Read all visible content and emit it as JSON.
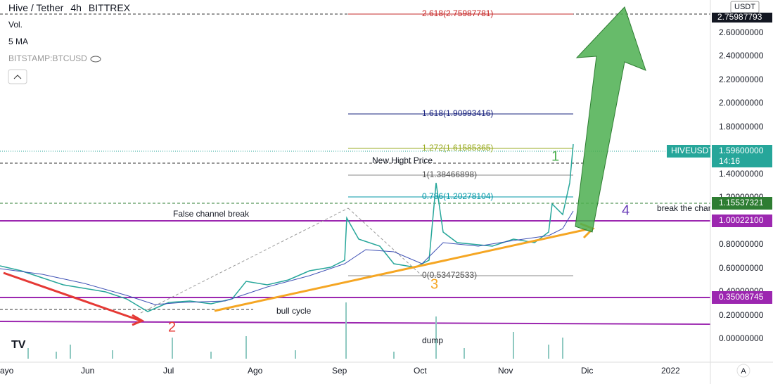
{
  "header": {
    "title": "Hive / Tether",
    "interval": "4h",
    "exchange": "BITTREX",
    "volume": "Vol.",
    "ma": "5 MA",
    "compare": "BITSTAMP:BTCUSD"
  },
  "price_axis": {
    "currency": "USDT",
    "labels": [
      "2.60000000",
      "2.40000000",
      "2.20000000",
      "2.00000000",
      "1.80000000",
      "1.40000000",
      "1.20000000",
      "0.80000000",
      "0.60000000",
      "0.40000000",
      "0.20000000",
      "0.00000000"
    ]
  },
  "badges": {
    "top": "2.75987793",
    "symbol": "HIVEUSDT",
    "price": "1.59600000",
    "countdown": "14:16",
    "level_a": "1.15537321",
    "level_b": "1.00022100",
    "level_c": "0.35008745"
  },
  "time_axis": [
    "ayo",
    "Jun",
    "Jul",
    "Ago",
    "Sep",
    "Oct",
    "Nov",
    "Dic",
    "2022"
  ],
  "fib": [
    "2.618(2.75987781)",
    "1.618(1.90993416)",
    "1.272(1.61585365)",
    "1(1.38466898)",
    "0.786(1.20278104)",
    "0(0.53472533)"
  ],
  "annotations": {
    "new_high": "New Hight Price",
    "false_break": "False channel break",
    "bull": "bull cycle",
    "dump": "dump",
    "break": "break the char",
    "w1": "1",
    "w2": "2",
    "w3": "3",
    "w4": "4"
  },
  "footer": {
    "auto": "A"
  }
}
